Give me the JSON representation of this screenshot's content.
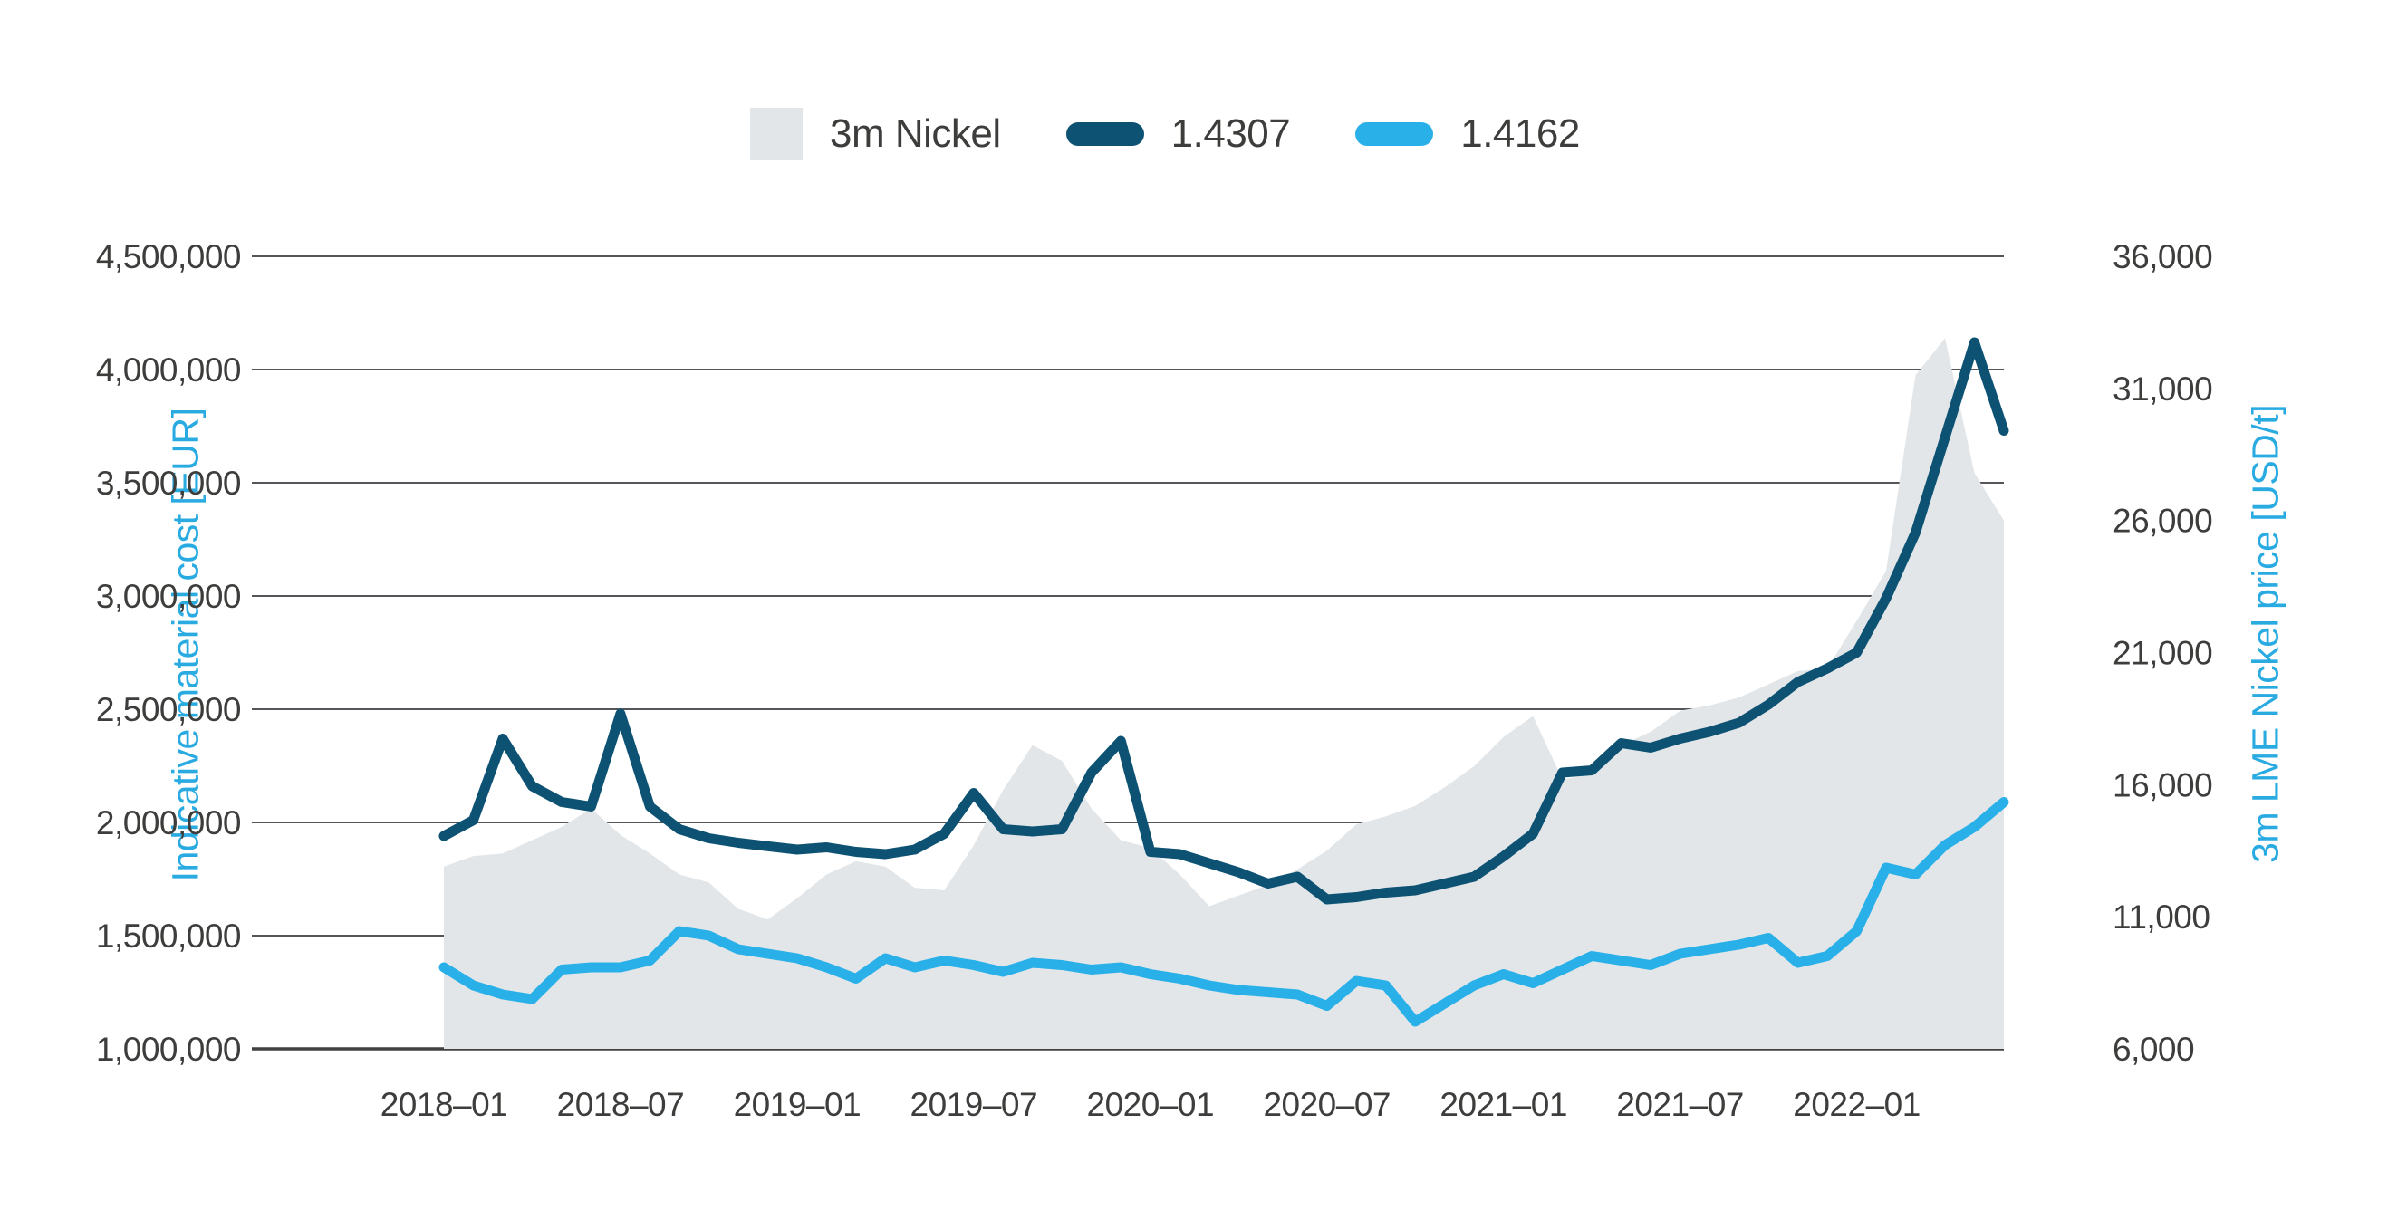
{
  "legend": {
    "items": [
      {
        "label": "3m Nickel",
        "swatch": "gray-square"
      },
      {
        "label": "1.4307",
        "swatch": "dark-pill"
      },
      {
        "label": "1.4162",
        "swatch": "light-pill"
      }
    ]
  },
  "colors": {
    "area": "#E2E6E9",
    "line_14307": "#0D5273",
    "line_14162": "#29B0E8",
    "axis_text": "#3D3D3B",
    "axis_title": "#29ABE2",
    "gridline": "#55565A"
  },
  "chart_data": {
    "type": "mixed",
    "grid": "horizontal",
    "legend_position": "top",
    "x": [
      "2018-01",
      "2018-02",
      "2018-03",
      "2018-04",
      "2018-05",
      "2018-06",
      "2018-07",
      "2018-08",
      "2018-09",
      "2018-10",
      "2018-11",
      "2018-12",
      "2019-01",
      "2019-02",
      "2019-03",
      "2019-04",
      "2019-05",
      "2019-06",
      "2019-07",
      "2019-08",
      "2019-09",
      "2019-10",
      "2019-11",
      "2019-12",
      "2020-01",
      "2020-02",
      "2020-03",
      "2020-04",
      "2020-05",
      "2020-06",
      "2020-07",
      "2020-08",
      "2020-09",
      "2020-10",
      "2020-11",
      "2020-12",
      "2021-01",
      "2021-02",
      "2021-03",
      "2021-04",
      "2021-05",
      "2021-06",
      "2021-07",
      "2021-08",
      "2021-09",
      "2021-10",
      "2021-11",
      "2021-12",
      "2022-01",
      "2022-02",
      "2022-03",
      "2022-04",
      "2022-05",
      "2022-06"
    ],
    "x_tick_indices": [
      0,
      6,
      12,
      18,
      24,
      30,
      36,
      42,
      48
    ],
    "x_tick_labels": [
      "2018–01",
      "2018–07",
      "2019–01",
      "2019–07",
      "2020–01",
      "2020–07",
      "2021–01",
      "2021–07",
      "2022–01"
    ],
    "left_axis": {
      "label": "Indicative material cost [EUR]",
      "min": 1000000,
      "max": 4500000,
      "tick_step": 500000,
      "tick_labels": [
        "4,500,000",
        "4,000,000",
        "3,500,000",
        "3,000,000",
        "2,500,000",
        "2,000,000",
        "1,500,000",
        "1,000,000"
      ]
    },
    "right_axis": {
      "label": "3m LME Nickel price [USD/t]",
      "min": 6000,
      "max": 36000,
      "tick_step": 5000,
      "tick_labels": [
        "36,000",
        "31,000",
        "26,000",
        "21,000",
        "16,000",
        "11,000",
        "6,000"
      ]
    },
    "series": [
      {
        "name": "3m Nickel",
        "type": "area",
        "axis": "right",
        "color": "#E2E6E9",
        "values": [
          12900,
          13300,
          13400,
          13900,
          14400,
          15100,
          14100,
          13400,
          12600,
          12300,
          11300,
          10900,
          11700,
          12600,
          13100,
          12900,
          12100,
          12000,
          13700,
          15800,
          17500,
          16900,
          15100,
          13900,
          13600,
          12600,
          11400,
          11800,
          12200,
          12800,
          13500,
          14500,
          14800,
          15200,
          15900,
          16700,
          17800,
          18600,
          16200,
          16400,
          17500,
          18000,
          18800,
          19000,
          19300,
          19800,
          20300,
          20400,
          22200,
          24100,
          31500,
          32900,
          27800,
          26000
        ]
      },
      {
        "name": "1.4307",
        "type": "line",
        "axis": "left",
        "color": "#0D5273",
        "values": [
          1940000,
          2010000,
          2370000,
          2160000,
          2090000,
          2070000,
          2480000,
          2070000,
          1970000,
          1930000,
          1910000,
          1895000,
          1880000,
          1890000,
          1870000,
          1860000,
          1880000,
          1950000,
          2130000,
          1970000,
          1960000,
          1970000,
          2220000,
          2360000,
          1870000,
          1860000,
          1820000,
          1780000,
          1730000,
          1760000,
          1660000,
          1670000,
          1690000,
          1700000,
          1730000,
          1760000,
          1850000,
          1950000,
          2220000,
          2230000,
          2350000,
          2330000,
          2370000,
          2400000,
          2440000,
          2520000,
          2620000,
          2680000,
          2750000,
          2990000,
          3280000,
          3700000,
          4120000,
          3730000
        ]
      },
      {
        "name": "1.4162",
        "type": "line",
        "axis": "left",
        "color": "#29B0E8",
        "values": [
          1360000,
          1280000,
          1240000,
          1220000,
          1350000,
          1360000,
          1360000,
          1390000,
          1520000,
          1500000,
          1440000,
          1420000,
          1400000,
          1360000,
          1310000,
          1400000,
          1360000,
          1390000,
          1370000,
          1340000,
          1380000,
          1370000,
          1350000,
          1360000,
          1330000,
          1310000,
          1280000,
          1260000,
          1250000,
          1240000,
          1190000,
          1300000,
          1280000,
          1120000,
          1200000,
          1280000,
          1330000,
          1290000,
          1350000,
          1410000,
          1390000,
          1370000,
          1420000,
          1440000,
          1460000,
          1490000,
          1380000,
          1410000,
          1520000,
          1800000,
          1770000,
          1900000,
          1980000,
          2090000
        ]
      }
    ]
  }
}
